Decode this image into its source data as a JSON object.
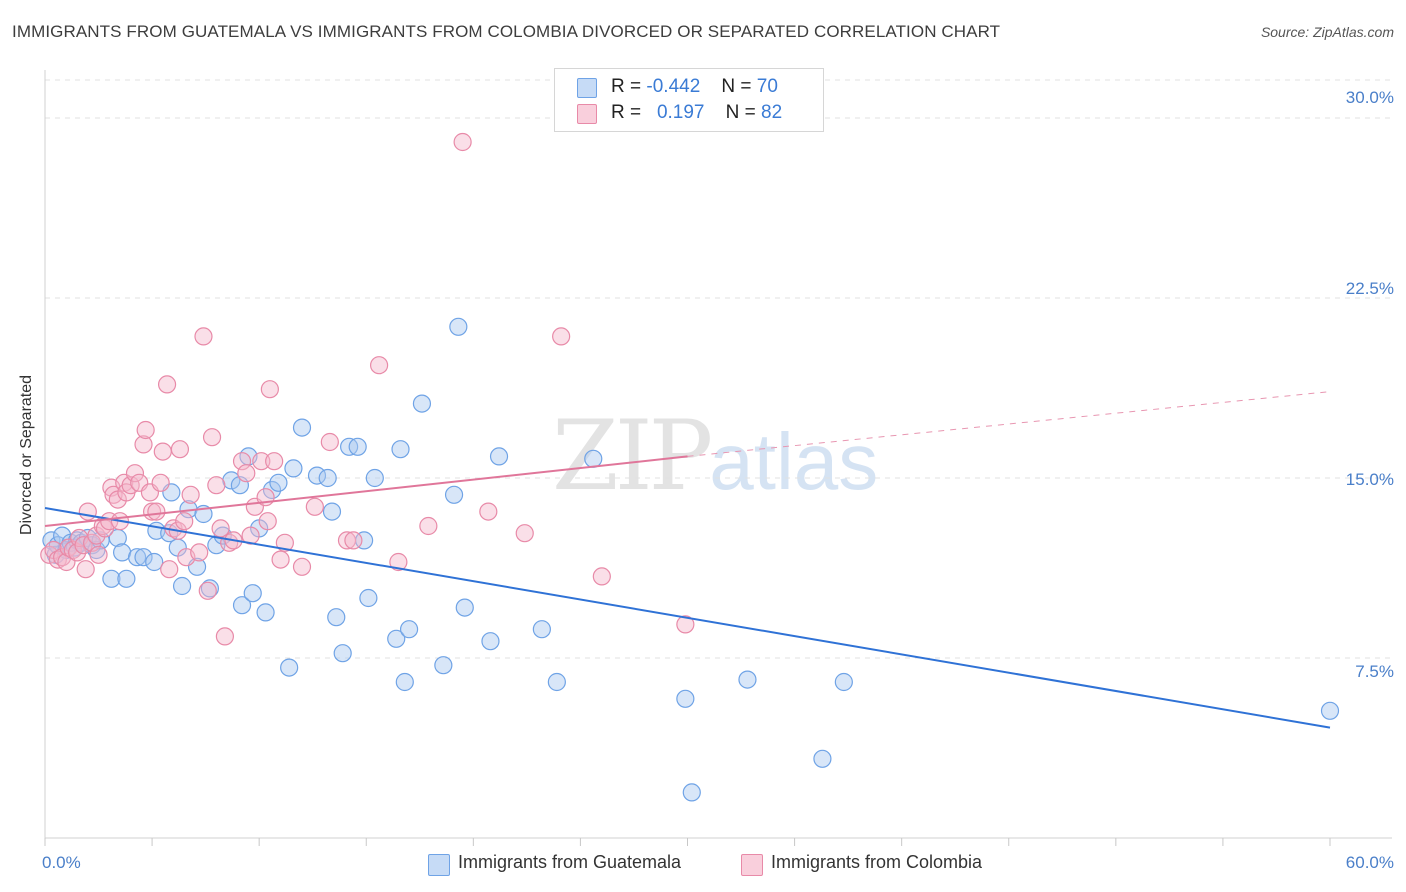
{
  "header": {
    "title": "IMMIGRANTS FROM GUATEMALA VS IMMIGRANTS FROM COLOMBIA DIVORCED OR SEPARATED CORRELATION CHART",
    "source": "Source: ZipAtlas.com"
  },
  "watermark": {
    "zip": "ZIP",
    "atlas": "atlas"
  },
  "legend": {
    "rows": [
      {
        "r_label": "R =",
        "r_value": "-0.442",
        "n_label": "N =",
        "n_value": "70",
        "color": "#a9c8f0"
      },
      {
        "r_label": "R =",
        "r_value": "0.197",
        "n_label": "N =",
        "n_value": "82",
        "color": "#f5b8cb"
      }
    ]
  },
  "chart_data": {
    "type": "scatter",
    "title": "IMMIGRANTS FROM GUATEMALA VS IMMIGRANTS FROM COLOMBIA DIVORCED OR SEPARATED CORRELATION CHART",
    "xlabel": "",
    "ylabel": "Divorced or Separated",
    "xlim": [
      0,
      60
    ],
    "ylim": [
      0,
      32
    ],
    "x_tick_labels": [
      "0.0%",
      "60.0%"
    ],
    "y_ticks": [
      7.5,
      15.0,
      22.5,
      30.0
    ],
    "y_tick_labels": [
      "7.5%",
      "15.0%",
      "22.5%",
      "30.0%"
    ],
    "grid": true,
    "legend_position": "bottom-center",
    "series": [
      {
        "name": "Immigrants from Guatemala",
        "color": "#6fa3e6",
        "fill": "#a9c8f0",
        "points": [
          [
            0.3,
            12.4
          ],
          [
            0.5,
            11.8
          ],
          [
            0.6,
            12.2
          ],
          [
            0.8,
            12.6
          ],
          [
            1.0,
            12.0
          ],
          [
            1.2,
            12.3
          ],
          [
            1.4,
            12.1
          ],
          [
            1.5,
            12.4
          ],
          [
            1.7,
            12.3
          ],
          [
            2.0,
            12.5
          ],
          [
            2.2,
            12.2
          ],
          [
            2.4,
            12.0
          ],
          [
            2.6,
            12.4
          ],
          [
            3.1,
            10.8
          ],
          [
            3.4,
            12.5
          ],
          [
            3.6,
            11.9
          ],
          [
            3.8,
            10.8
          ],
          [
            4.3,
            11.7
          ],
          [
            4.6,
            11.7
          ],
          [
            5.1,
            11.5
          ],
          [
            5.2,
            12.8
          ],
          [
            5.8,
            12.7
          ],
          [
            5.9,
            14.4
          ],
          [
            6.2,
            12.1
          ],
          [
            6.4,
            10.5
          ],
          [
            6.7,
            13.7
          ],
          [
            7.1,
            11.3
          ],
          [
            7.4,
            13.5
          ],
          [
            7.7,
            10.4
          ],
          [
            8.0,
            12.2
          ],
          [
            8.3,
            12.6
          ],
          [
            8.7,
            14.9
          ],
          [
            9.1,
            14.7
          ],
          [
            9.2,
            9.7
          ],
          [
            9.5,
            15.9
          ],
          [
            9.7,
            10.2
          ],
          [
            10.0,
            12.9
          ],
          [
            10.3,
            9.4
          ],
          [
            10.6,
            14.5
          ],
          [
            10.9,
            14.8
          ],
          [
            11.4,
            7.1
          ],
          [
            11.6,
            15.4
          ],
          [
            12.0,
            17.1
          ],
          [
            12.7,
            15.1
          ],
          [
            13.2,
            15.0
          ],
          [
            13.4,
            13.6
          ],
          [
            13.6,
            9.2
          ],
          [
            13.9,
            7.7
          ],
          [
            14.2,
            16.3
          ],
          [
            14.6,
            16.3
          ],
          [
            14.9,
            12.4
          ],
          [
            15.1,
            10.0
          ],
          [
            15.4,
            15.0
          ],
          [
            16.4,
            8.3
          ],
          [
            16.6,
            16.2
          ],
          [
            16.8,
            6.5
          ],
          [
            17.0,
            8.7
          ],
          [
            17.6,
            18.1
          ],
          [
            18.6,
            7.2
          ],
          [
            19.1,
            14.3
          ],
          [
            19.3,
            21.3
          ],
          [
            19.6,
            9.6
          ],
          [
            20.8,
            8.2
          ],
          [
            21.2,
            15.9
          ],
          [
            23.2,
            8.7
          ],
          [
            23.9,
            6.5
          ],
          [
            25.6,
            15.8
          ],
          [
            29.9,
            5.8
          ],
          [
            30.2,
            1.9
          ],
          [
            32.8,
            6.6
          ],
          [
            36.3,
            3.3
          ],
          [
            37.3,
            6.5
          ],
          [
            60.0,
            5.3
          ]
        ]
      },
      {
        "name": "Immigrants from Colombia",
        "color": "#e88aa8",
        "fill": "#f5b8cb",
        "points": [
          [
            0.2,
            11.8
          ],
          [
            0.4,
            12.0
          ],
          [
            0.6,
            11.6
          ],
          [
            0.8,
            11.7
          ],
          [
            1.0,
            11.5
          ],
          [
            1.1,
            12.1
          ],
          [
            1.3,
            12.0
          ],
          [
            1.5,
            11.9
          ],
          [
            1.6,
            12.5
          ],
          [
            1.8,
            12.2
          ],
          [
            1.9,
            11.2
          ],
          [
            2.0,
            13.6
          ],
          [
            2.2,
            12.3
          ],
          [
            2.4,
            12.6
          ],
          [
            2.5,
            11.8
          ],
          [
            2.7,
            13.0
          ],
          [
            2.8,
            12.9
          ],
          [
            3.0,
            13.2
          ],
          [
            3.1,
            14.6
          ],
          [
            3.2,
            14.3
          ],
          [
            3.4,
            14.1
          ],
          [
            3.5,
            13.2
          ],
          [
            3.7,
            14.8
          ],
          [
            3.8,
            14.4
          ],
          [
            4.0,
            14.7
          ],
          [
            4.2,
            15.2
          ],
          [
            4.4,
            14.8
          ],
          [
            4.6,
            16.4
          ],
          [
            4.7,
            17.0
          ],
          [
            4.9,
            14.4
          ],
          [
            5.0,
            13.6
          ],
          [
            5.2,
            13.6
          ],
          [
            5.4,
            14.8
          ],
          [
            5.5,
            16.1
          ],
          [
            5.7,
            18.9
          ],
          [
            5.8,
            11.2
          ],
          [
            6.0,
            12.9
          ],
          [
            6.2,
            12.8
          ],
          [
            6.3,
            16.2
          ],
          [
            6.5,
            13.2
          ],
          [
            6.6,
            11.7
          ],
          [
            6.8,
            14.3
          ],
          [
            7.2,
            11.9
          ],
          [
            7.4,
            20.9
          ],
          [
            7.6,
            10.3
          ],
          [
            7.8,
            16.7
          ],
          [
            8.0,
            14.7
          ],
          [
            8.2,
            12.9
          ],
          [
            8.4,
            8.4
          ],
          [
            8.6,
            12.3
          ],
          [
            8.8,
            12.4
          ],
          [
            9.2,
            15.7
          ],
          [
            9.4,
            15.2
          ],
          [
            9.6,
            12.6
          ],
          [
            9.8,
            13.8
          ],
          [
            10.1,
            15.7
          ],
          [
            10.3,
            14.2
          ],
          [
            10.4,
            13.2
          ],
          [
            10.5,
            18.7
          ],
          [
            10.7,
            15.7
          ],
          [
            11.0,
            11.6
          ],
          [
            11.2,
            12.3
          ],
          [
            12.0,
            11.3
          ],
          [
            12.6,
            13.8
          ],
          [
            13.3,
            16.5
          ],
          [
            14.1,
            12.4
          ],
          [
            14.4,
            12.4
          ],
          [
            15.6,
            19.7
          ],
          [
            16.5,
            11.5
          ],
          [
            17.9,
            13.0
          ],
          [
            19.5,
            29.0
          ],
          [
            20.7,
            13.6
          ],
          [
            22.4,
            12.7
          ],
          [
            24.1,
            20.9
          ],
          [
            26.0,
            10.9
          ],
          [
            29.9,
            8.9
          ]
        ]
      }
    ],
    "trend_lines": [
      {
        "series": "Immigrants from Guatemala",
        "from": [
          0,
          13.75
        ],
        "to": [
          60,
          4.6
        ],
        "dashed_from": null
      },
      {
        "series": "Immigrants from Colombia",
        "from": [
          0,
          13.0
        ],
        "to": [
          30,
          15.9
        ],
        "dashed_to": [
          60,
          18.6
        ]
      }
    ]
  },
  "bottom_legend": [
    {
      "label": "Immigrants from Guatemala",
      "color": "#a9c8f0",
      "border": "#6fa3e6"
    },
    {
      "label": "Immigrants from Colombia",
      "color": "#f5b8cb",
      "border": "#e88aa8"
    }
  ]
}
